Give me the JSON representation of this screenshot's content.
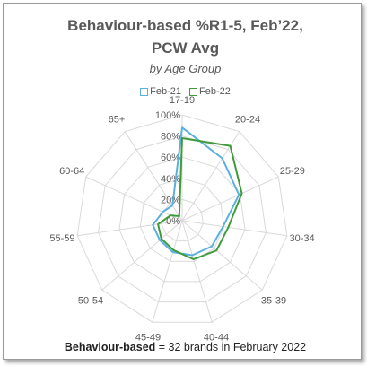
{
  "chart_data": {
    "type": "radar",
    "title_line1": "Behaviour-based %R1-5, Feb’22,",
    "title_line2": "PCW Avg",
    "subtitle": "by Age Group",
    "categories": [
      "17-19",
      "20-24",
      "25-29",
      "30-34",
      "35-39",
      "40-44",
      "45-49",
      "50-54",
      "55-59",
      "60-64",
      "65+"
    ],
    "radial_ticks": [
      "0%",
      "20%",
      "40%",
      "60%",
      "80%",
      "100%"
    ],
    "rmax": 100,
    "series": [
      {
        "name": "Feb-21",
        "color": "#5ab0df",
        "values": [
          88,
          70,
          59,
          39,
          37,
          34,
          31,
          28,
          28,
          20,
          17
        ]
      },
      {
        "name": "Feb-22",
        "color": "#3f9a3a",
        "values": [
          78,
          84,
          62,
          44,
          43,
          38,
          29,
          26,
          23,
          12,
          5
        ]
      }
    ],
    "grid": true,
    "legend_position": "top"
  },
  "footer": {
    "bold": "Behaviour-based",
    "rest": " = 32 brands in February 2022"
  }
}
